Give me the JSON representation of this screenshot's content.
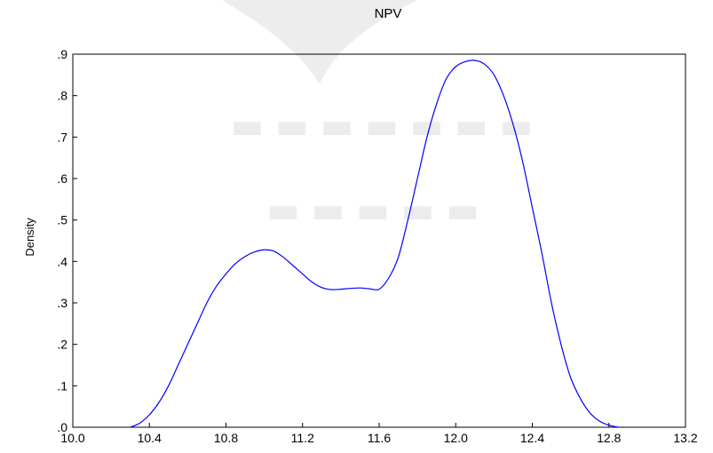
{
  "chart_data": {
    "type": "line",
    "title": "NPV",
    "xlabel": "",
    "ylabel": "Density",
    "xlim": [
      10.0,
      13.2
    ],
    "ylim": [
      0.0,
      0.9
    ],
    "x_ticks": [
      10.0,
      10.4,
      10.8,
      11.2,
      11.6,
      12.0,
      12.4,
      12.8,
      13.2
    ],
    "x_tick_labels": [
      "10.0",
      "10.4",
      "10.8",
      "11.2",
      "11.6",
      "12.0",
      "12.4",
      "12.8",
      "13.2"
    ],
    "y_ticks": [
      0.0,
      0.1,
      0.2,
      0.3,
      0.4,
      0.5,
      0.6,
      0.7,
      0.8,
      0.9
    ],
    "y_tick_labels": [
      ".0",
      ".1",
      ".2",
      ".3",
      ".4",
      ".5",
      ".6",
      ".7",
      ".8",
      ".9"
    ],
    "grid": false,
    "series": [
      {
        "color": "#0000ff",
        "x": [
          10.3,
          10.35,
          10.4,
          10.45,
          10.5,
          10.55,
          10.6,
          10.65,
          10.7,
          10.75,
          10.8,
          10.85,
          10.9,
          10.95,
          11.0,
          11.05,
          11.1,
          11.15,
          11.2,
          11.25,
          11.3,
          11.35,
          11.4,
          11.45,
          11.5,
          11.55,
          11.6,
          11.65,
          11.7,
          11.75,
          11.8,
          11.85,
          11.9,
          11.95,
          12.0,
          12.05,
          12.1,
          12.15,
          12.2,
          12.25,
          12.3,
          12.35,
          12.4,
          12.45,
          12.5,
          12.55,
          12.6,
          12.65,
          12.7,
          12.75,
          12.8,
          12.85
        ],
        "y": [
          0.0,
          0.01,
          0.03,
          0.06,
          0.1,
          0.15,
          0.2,
          0.25,
          0.3,
          0.34,
          0.37,
          0.395,
          0.412,
          0.423,
          0.428,
          0.425,
          0.41,
          0.39,
          0.37,
          0.35,
          0.337,
          0.332,
          0.333,
          0.335,
          0.336,
          0.334,
          0.333,
          0.36,
          0.41,
          0.5,
          0.6,
          0.7,
          0.78,
          0.84,
          0.87,
          0.882,
          0.885,
          0.876,
          0.85,
          0.8,
          0.73,
          0.64,
          0.53,
          0.42,
          0.3,
          0.2,
          0.12,
          0.07,
          0.035,
          0.015,
          0.005,
          0.0
        ]
      }
    ]
  }
}
